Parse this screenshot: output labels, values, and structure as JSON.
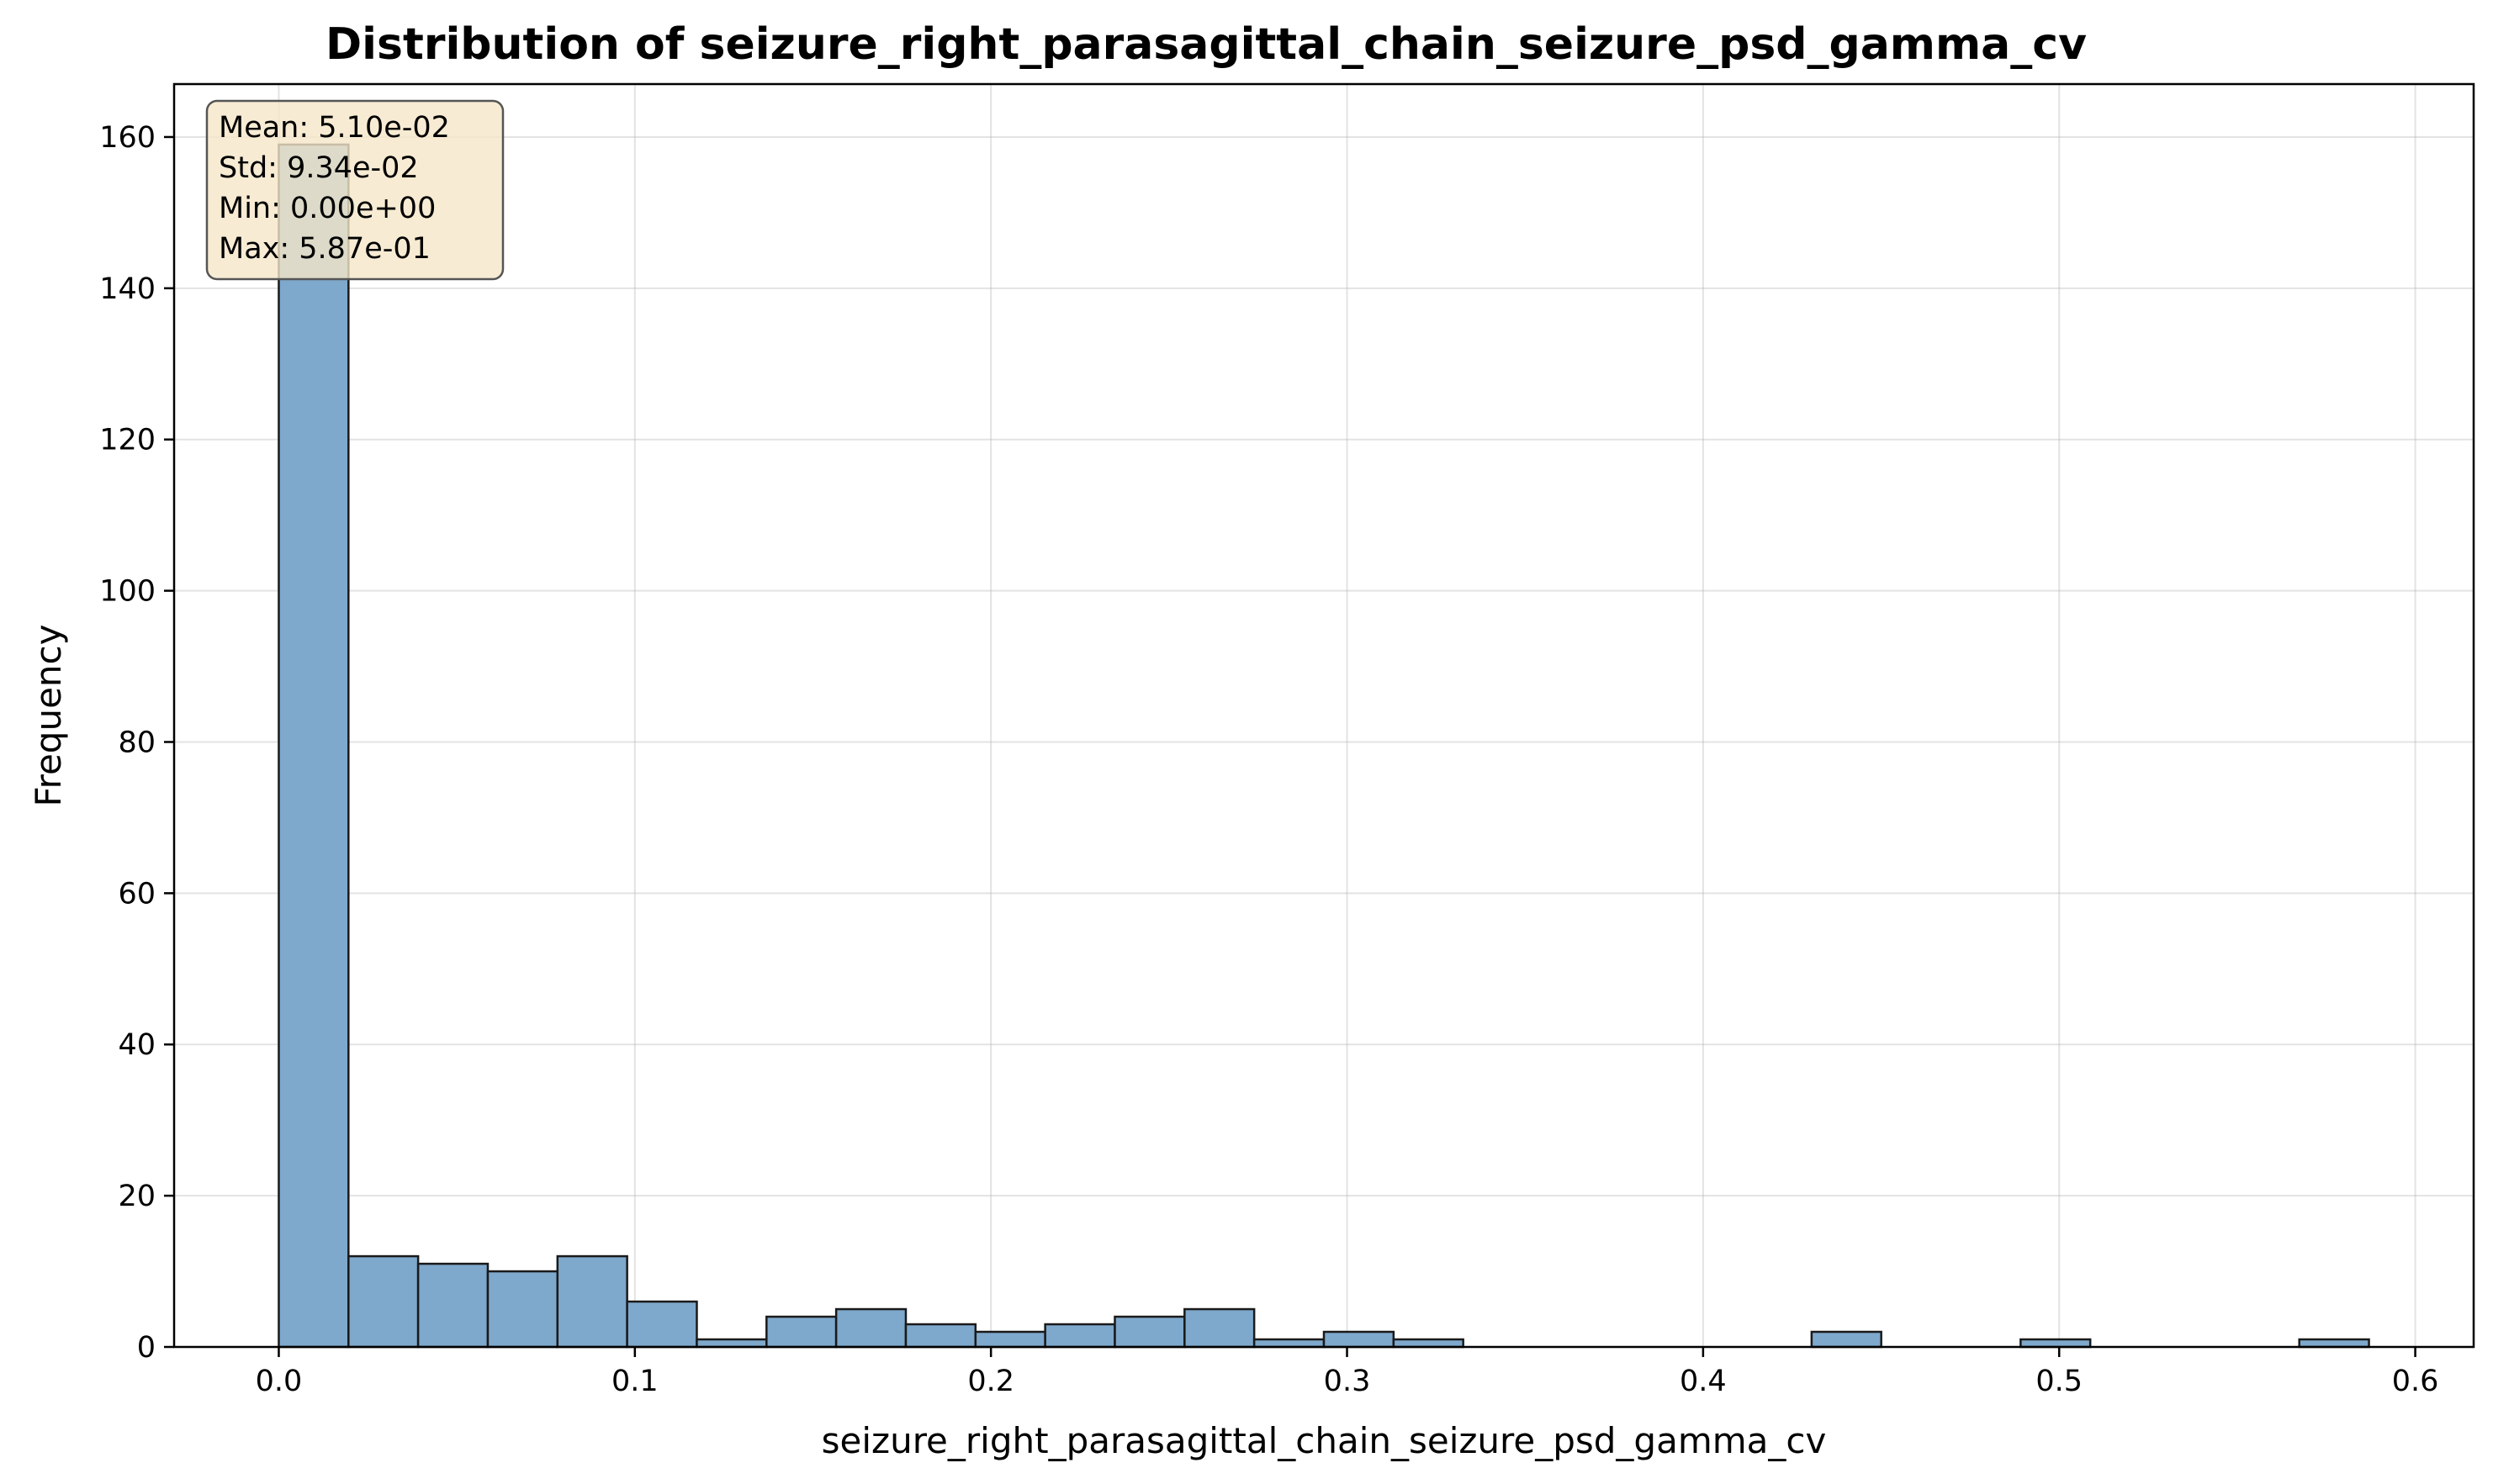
{
  "chart_data": {
    "type": "bar",
    "title": "Distribution of seizure_right_parasagittal_chain_seizure_psd_gamma_cv",
    "xlabel": "seizure_right_parasagittal_chain_seizure_psd_gamma_cv",
    "ylabel": "Frequency",
    "xlim": [
      -0.0294,
      0.6164
    ],
    "ylim": [
      0,
      167
    ],
    "x_ticks": [
      0.0,
      0.1,
      0.2,
      0.3,
      0.4,
      0.5,
      0.6
    ],
    "x_tick_labels": [
      "0.0",
      "0.1",
      "0.2",
      "0.3",
      "0.4",
      "0.5",
      "0.6"
    ],
    "y_ticks": [
      0,
      20,
      40,
      60,
      80,
      100,
      120,
      140,
      160
    ],
    "y_tick_labels": [
      "0",
      "20",
      "40",
      "60",
      "80",
      "100",
      "120",
      "140",
      "160"
    ],
    "grid": true,
    "bin_edges": [
      0.0,
      0.01957,
      0.03913,
      0.0587,
      0.07827,
      0.09783,
      0.1174,
      0.13697,
      0.15653,
      0.1761,
      0.19567,
      0.21523,
      0.2348,
      0.25437,
      0.27393,
      0.2935,
      0.31307,
      0.33263,
      0.3522,
      0.37177,
      0.39133,
      0.4109,
      0.43047,
      0.45003,
      0.4696,
      0.48917,
      0.50873,
      0.5283,
      0.54787,
      0.56743,
      0.587
    ],
    "values": [
      159,
      12,
      11,
      10,
      12,
      6,
      1,
      4,
      5,
      3,
      2,
      3,
      4,
      5,
      1,
      2,
      1,
      0,
      0,
      0,
      0,
      0,
      2,
      0,
      0,
      1,
      0,
      0,
      0,
      1
    ],
    "bar_color": "#7ea8cc",
    "edge_color": "#1a1a1a",
    "stats_box": {
      "lines": [
        "Mean: 5.10e-02",
        "Std: 9.34e-02",
        "Min: 0.00e+00",
        "Max: 5.87e-01"
      ],
      "location": "top-left",
      "background": "#f5e6c8"
    }
  }
}
